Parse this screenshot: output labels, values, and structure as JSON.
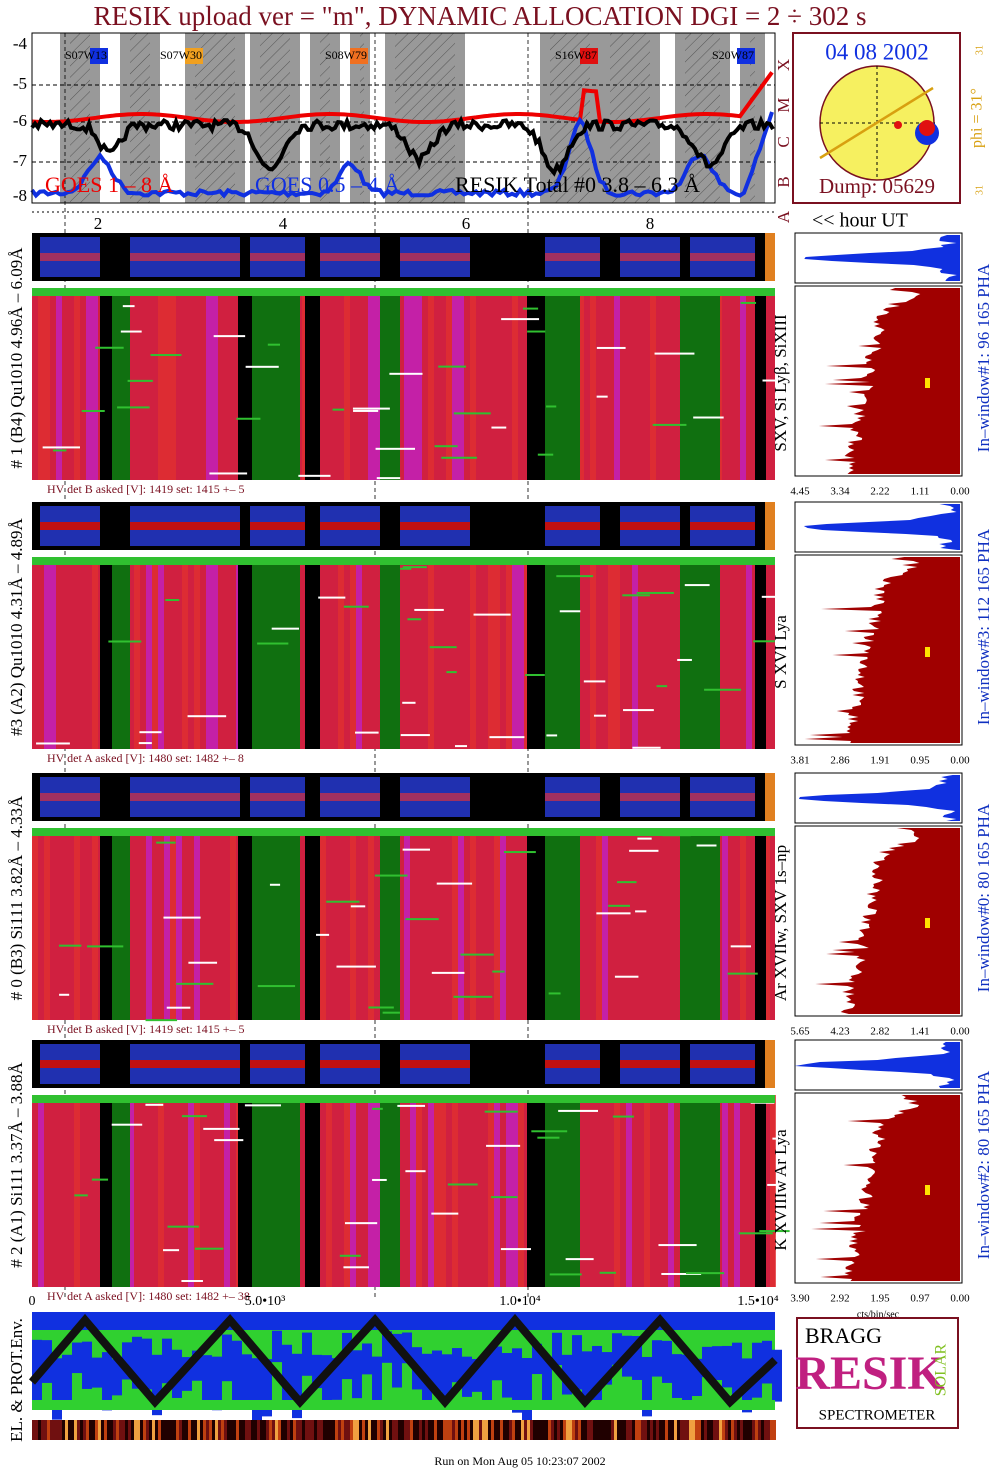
{
  "title": "RESIK upload ver = \"m\", DYNAMIC ALLOCATION  DGI =   2 ÷ 302 s",
  "goes": {
    "y_ticks": [
      "-4",
      "-5",
      "-6",
      "-7",
      "-8"
    ],
    "class_labels": [
      "X",
      "M",
      "C",
      "B",
      "A"
    ],
    "regions": [
      "S07W13",
      "S07W30",
      "S08W79",
      "S16W87",
      "S20W87"
    ],
    "legend": [
      "GOES 1 – 8 Å",
      "GOES 0.5 – 4 Å",
      "RESIK Total #0  3.8 – 6.3 Å"
    ],
    "hour_ticks": [
      "2",
      "4",
      "6",
      "8"
    ],
    "hour_label": "<< hour UT"
  },
  "sun": {
    "date": "04 08 2002",
    "phi": "phi = 31°",
    "dump": "Dump: 05629",
    "scale_top": "31",
    "scale_bottom": "31"
  },
  "detectors": [
    {
      "label": "# 1 (B4) Qu1010 4.96Å – 6.09Å",
      "hv": "HV det B asked [V]:  1419 set:  1415 +–   5",
      "lines": "SXV, Si Lyβ, SiXIII",
      "window": "In–window#1:  96 165 PHA",
      "pha_ticks": [
        "4.45",
        "3.34",
        "2.22",
        "1.11",
        "0.00"
      ]
    },
    {
      "label": "#3 (A2) Qu1010  4.31Å – 4.89Å",
      "hv": "HV det A asked [V]:  1480 set:  1482 +–   8",
      "lines": "S XVI Lya",
      "window": "In–window#3:  112 165 PHA",
      "pha_ticks": [
        "3.81",
        "2.86",
        "1.91",
        "0.95",
        "0.00"
      ]
    },
    {
      "label": "# 0 (B3) Si111  3.82Å – 4.33Å",
      "hv": "HV det B asked [V]:  1419 set:  1415 +–   5",
      "lines": "Ar XVIIw,  SXV 1s–np",
      "window": "In–window#0:  80 165 PHA",
      "pha_ticks": [
        "5.65",
        "4.23",
        "2.82",
        "1.41",
        "0.00"
      ]
    },
    {
      "label": "# 2 (A1) Si111  3.37Å – 3.88Å",
      "hv": "HV det A asked [V]:  1480 set:  1482 +–  38",
      "lines": "K XVIIIw  Ar Lya",
      "window": "In–window#2:  80 165 PHA",
      "pha_ticks": [
        "3.90",
        "2.92",
        "1.95",
        "0.97",
        "0.00"
      ]
    }
  ],
  "pha_unit": "cts/bin/sec",
  "seconds_ticks": [
    "0",
    "5.0•10³",
    "1.0•10⁴",
    "1.5•10⁴"
  ],
  "env_label": "EL. & PROT.Env.",
  "logo": {
    "top": "BRAGG",
    "middle": "RESIK",
    "side": "SOLAR",
    "bottom": "SPECTROMETER"
  },
  "footer": "Run on Mon Aug 05 10:23:07 2002"
}
